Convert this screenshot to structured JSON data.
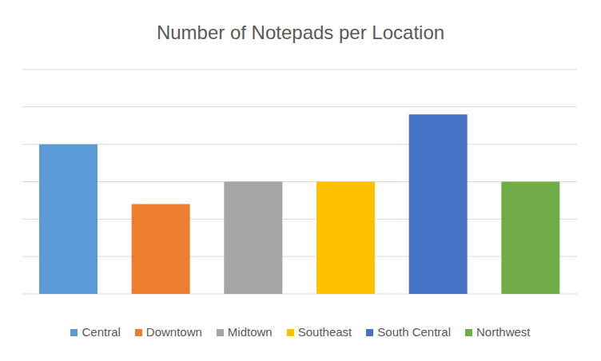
{
  "chart_data": {
    "type": "bar",
    "title": "Number of Notepads per Location",
    "categories": [
      "Central",
      "Downtown",
      "Midtown",
      "Southeast",
      "South Central",
      "Northwest"
    ],
    "values": [
      4,
      2.4,
      3,
      3,
      4.8,
      3
    ],
    "colors": [
      "#5b9bd5",
      "#ed7d31",
      "#a5a5a5",
      "#ffc000",
      "#4472c4",
      "#70ad47"
    ],
    "ylim": [
      0,
      6
    ],
    "yticks": [
      0,
      1,
      2,
      3,
      4,
      5,
      6
    ],
    "grid": true,
    "tick_labels": false,
    "legend": "bottom"
  }
}
